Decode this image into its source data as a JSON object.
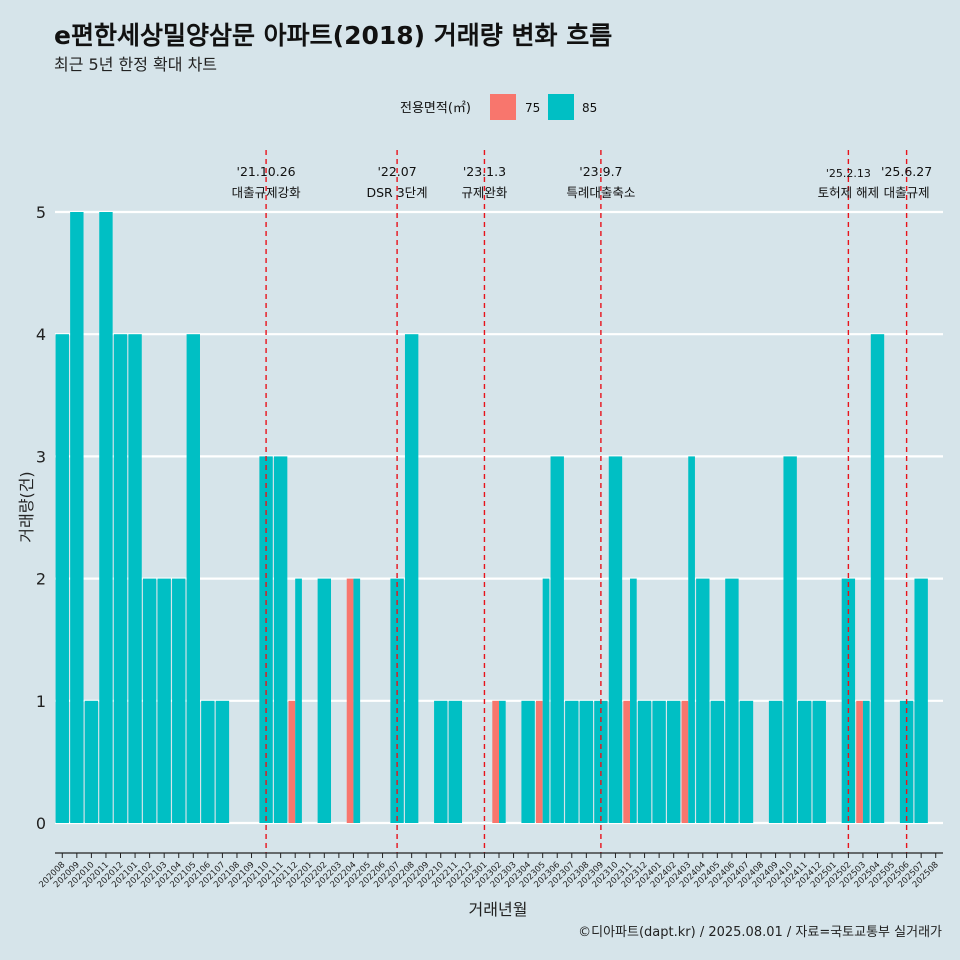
{
  "header": {
    "title": "e편한세상밀양삼문 아파트(2018) 거래량 변화 흐름",
    "subtitle": "최근 5년 한정 확대 차트"
  },
  "legend": {
    "title": "전용면적(㎡)",
    "items": [
      {
        "label": "75",
        "color": "#f8766d"
      },
      {
        "label": "85",
        "color": "#00bfc4"
      }
    ]
  },
  "footer": {
    "credit": "©디아파트(dapt.kr) / 2025.08.01 / 자료=국토교통부 실거래가"
  },
  "chart_data": {
    "type": "bar",
    "stacking": "dodge",
    "xlabel": "거래년월",
    "ylabel": "거래량(건)",
    "ylim": [
      0,
      5
    ],
    "yticks": [
      0,
      1,
      2,
      3,
      4,
      5
    ],
    "grid": "horizontal",
    "legend_position": "top",
    "categories": [
      "202008",
      "202009",
      "202010",
      "202011",
      "202012",
      "202101",
      "202102",
      "202103",
      "202104",
      "202105",
      "202106",
      "202107",
      "202108",
      "202109",
      "202110",
      "202111",
      "202112",
      "202201",
      "202202",
      "202203",
      "202204",
      "202205",
      "202206",
      "202207",
      "202208",
      "202209",
      "202210",
      "202211",
      "202212",
      "202301",
      "202302",
      "202303",
      "202304",
      "202305",
      "202306",
      "202307",
      "202308",
      "202309",
      "202310",
      "202311",
      "202312",
      "202401",
      "202402",
      "202403",
      "202404",
      "202405",
      "202406",
      "202407",
      "202408",
      "202409",
      "202410",
      "202411",
      "202412",
      "202501",
      "202502",
      "202503",
      "202504",
      "202505",
      "202506",
      "202507",
      "202508"
    ],
    "series": [
      {
        "name": "75",
        "color": "#f8766d",
        "values": [
          0,
          0,
          0,
          0,
          0,
          0,
          0,
          0,
          0,
          0,
          0,
          0,
          0,
          0,
          0,
          0,
          1,
          0,
          0,
          0,
          2,
          0,
          0,
          0,
          0,
          0,
          0,
          0,
          0,
          0,
          1,
          0,
          0,
          1,
          0,
          0,
          0,
          0,
          0,
          1,
          0,
          0,
          0,
          1,
          0,
          0,
          0,
          0,
          0,
          0,
          0,
          0,
          0,
          0,
          0,
          1,
          0,
          0,
          0,
          0,
          0
        ]
      },
      {
        "name": "85",
        "color": "#00bfc4",
        "values": [
          4,
          5,
          1,
          5,
          4,
          4,
          2,
          2,
          2,
          4,
          1,
          1,
          0,
          0,
          3,
          3,
          2,
          0,
          2,
          0,
          2,
          0,
          0,
          2,
          4,
          0,
          1,
          1,
          0,
          0,
          1,
          0,
          1,
          2,
          3,
          1,
          1,
          1,
          3,
          2,
          1,
          1,
          1,
          3,
          2,
          1,
          2,
          1,
          0,
          1,
          3,
          1,
          1,
          0,
          2,
          1,
          4,
          0,
          1,
          2,
          0
        ]
      }
    ],
    "annotations": [
      {
        "date": "'21.10.26",
        "label": "대출규제강화",
        "category": "202110"
      },
      {
        "date": "'22.07",
        "label": "DSR 3단계",
        "category": "202207"
      },
      {
        "date": "'23.1.3",
        "label": "규제완화",
        "category": "202301"
      },
      {
        "date": "'23.9.7",
        "label": "특례대출축소",
        "category": "202309"
      },
      {
        "date": "'25.2.13",
        "label": "토허제 해제",
        "category": "202502"
      },
      {
        "date": "'25.6.27",
        "label": "대출규제",
        "category": "202506"
      }
    ]
  }
}
